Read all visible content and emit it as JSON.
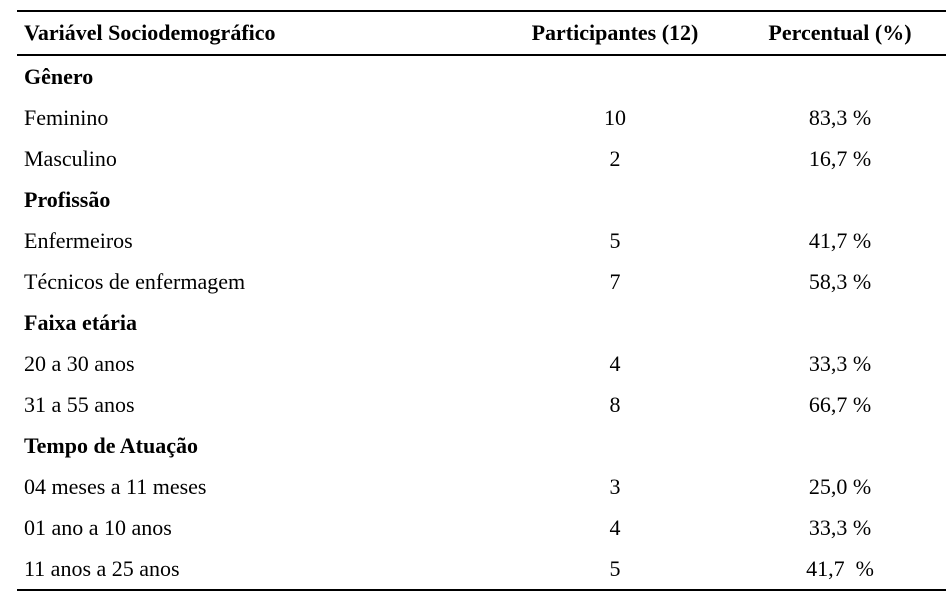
{
  "table": {
    "columns": {
      "label": "Variável Sociodemográfico",
      "participants": "Participantes (12)",
      "percent": "Percentual (%)"
    },
    "rows": [
      {
        "type": "section",
        "label": "Gênero",
        "participants": "",
        "percent": ""
      },
      {
        "type": "data",
        "label": "Feminino",
        "participants": "10",
        "percent": "83,3 %"
      },
      {
        "type": "data",
        "label": "Masculino",
        "participants": "2",
        "percent": "16,7 %"
      },
      {
        "type": "section",
        "label": "Profissão",
        "participants": "",
        "percent": ""
      },
      {
        "type": "data",
        "label": "Enfermeiros",
        "participants": "5",
        "percent": "41,7 %"
      },
      {
        "type": "data",
        "label": "Técnicos de enfermagem",
        "participants": "7",
        "percent": "58,3 %"
      },
      {
        "type": "section",
        "label": "Faixa etária",
        "participants": "",
        "percent": ""
      },
      {
        "type": "data",
        "label": "20 a 30 anos",
        "participants": "4",
        "percent": "33,3 %"
      },
      {
        "type": "data",
        "label": "31 a 55 anos",
        "participants": "8",
        "percent": "66,7 %"
      },
      {
        "type": "section",
        "label": "Tempo de Atuação",
        "participants": "",
        "percent": ""
      },
      {
        "type": "data",
        "label": "04 meses a 11 meses",
        "participants": "3",
        "percent": "25,0 %"
      },
      {
        "type": "data",
        "label": "01 ano a 10 anos",
        "participants": "4",
        "percent": "33,3 %"
      },
      {
        "type": "data",
        "label": "11 anos a 25 anos",
        "participants": "5",
        "percent": "41,7  %"
      }
    ]
  },
  "colors": {
    "text": "#000000",
    "rule": "#000000",
    "background": "#ffffff"
  }
}
